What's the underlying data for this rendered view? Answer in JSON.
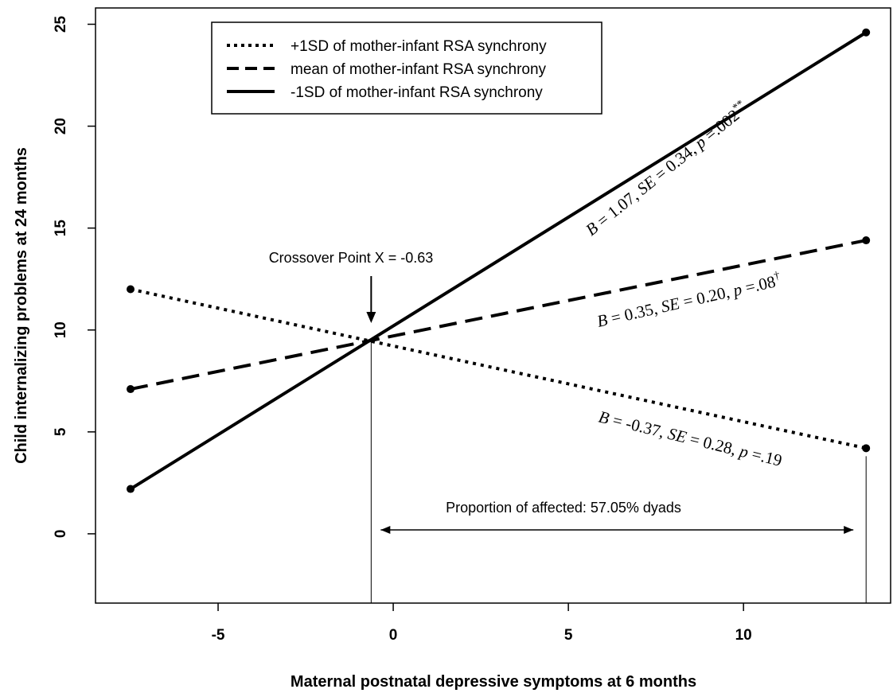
{
  "chart_data": {
    "type": "line",
    "xlabel": "Maternal postnatal depressive symptoms at 6 months",
    "ylabel": "Child internalizing problems at 24 months",
    "xlim": [
      -8.5,
      14.2
    ],
    "ylim": [
      -3.4,
      25.8
    ],
    "x_ticks": [
      -5,
      0,
      5,
      10
    ],
    "y_ticks": [
      0,
      5,
      10,
      15,
      20,
      25
    ],
    "grid": false,
    "legend_position": "top-center",
    "series": [
      {
        "name": "+1SD of mother-infant RSA synchrony",
        "style": "dotted",
        "x": [
          -7.5,
          13.5
        ],
        "y": [
          12.0,
          4.2
        ]
      },
      {
        "name": "mean of mother-infant RSA synchrony",
        "style": "dashed",
        "x": [
          -7.5,
          13.5
        ],
        "y": [
          7.1,
          14.4
        ]
      },
      {
        "name": "-1SD of mother-infant RSA synchrony",
        "style": "solid",
        "x": [
          -7.5,
          13.5
        ],
        "y": [
          2.2,
          24.6
        ]
      }
    ],
    "annotations": {
      "crossover": {
        "text": "Crossover Point X = -0.63",
        "x": -0.63,
        "y": 9.5
      },
      "proportion": {
        "text": "Proportion of affected: 57.05% dyads",
        "x_from": -0.63,
        "x_to": 13.5
      },
      "slopes": [
        {
          "series": "-1SD of mother-infant RSA synchrony",
          "B_label": "B",
          "B_value": " = 1.07, ",
          "SE_label": "SE",
          "SE_value": " = 0.34, ",
          "p_label": "p",
          "p_value": " =.002",
          "sup": "**"
        },
        {
          "series": "mean of mother-infant RSA synchrony",
          "B_label": "B",
          "B_value": " = 0.35, ",
          "SE_label": "SE",
          "SE_value": " = 0.20, ",
          "p_label": "p",
          "p_value": " =.08",
          "sup": "†"
        },
        {
          "series": "+1SD of mother-infant RSA synchrony",
          "B_label": "B",
          "B_value": " = -0.37, ",
          "SE_label": "SE",
          "SE_value": " = 0.28, ",
          "p_label": "p",
          "p_value": " =.19",
          "sup": ""
        }
      ]
    }
  }
}
